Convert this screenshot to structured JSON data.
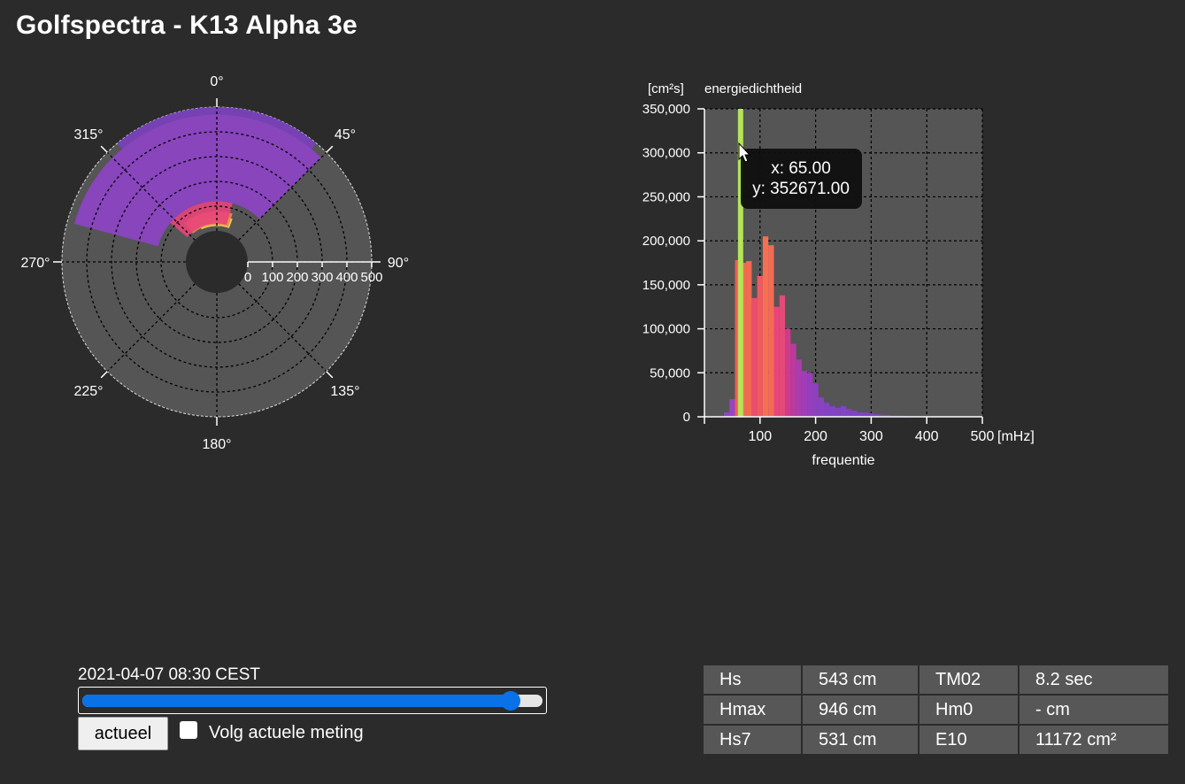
{
  "title": "Golfspectra - K13 Alpha 3e",
  "polar": {
    "direction_labels": [
      "0°",
      "45°",
      "90°",
      "135°",
      "180°",
      "225°",
      "270°",
      "315°"
    ],
    "radial_ticks": [
      "0",
      "100",
      "200",
      "300",
      "400",
      "500"
    ],
    "energy_bands": [
      {
        "r_min": 20,
        "r_max": 60,
        "dir_from": -25,
        "dir_to": 20,
        "color": "#f4e04d"
      },
      {
        "r_min": 25,
        "r_max": 80,
        "dir_from": -40,
        "dir_to": 18,
        "color": "#f2894f"
      },
      {
        "r_min": 30,
        "r_max": 120,
        "dir_from": -50,
        "dir_to": 15,
        "color": "#e8457a"
      },
      {
        "r_min": 120,
        "r_max": 470,
        "dir_from": -75,
        "dir_to": 45,
        "color": "#8e44c8"
      },
      {
        "r_min": 470,
        "r_max": 500,
        "dir_from": -40,
        "dir_to": 40,
        "color": "#7a3fbf"
      }
    ]
  },
  "chart_data": {
    "type": "bar",
    "title": "energiedichtheid",
    "ylabel": "[cm²s]",
    "xlabel": "frequentie",
    "xunit": "[mHz]",
    "xlim": [
      0,
      500
    ],
    "ylim": [
      0,
      350000
    ],
    "xticks": [
      "100",
      "200",
      "300",
      "400",
      "500"
    ],
    "yticks": [
      "0",
      "50,000",
      "100,000",
      "150,000",
      "200,000",
      "250,000",
      "300,000",
      "350,000"
    ],
    "grid": true,
    "bin_width": 10,
    "bins": [
      {
        "x": 40,
        "y": 5000,
        "color": "#8e44c8"
      },
      {
        "x": 50,
        "y": 20000,
        "color": "#9b44c0"
      },
      {
        "x": 60,
        "y": 178000,
        "color": "#ef5e57"
      },
      {
        "x": 70,
        "y": 175000,
        "color": "#f36c4f"
      },
      {
        "x": 80,
        "y": 177000,
        "color": "#f26a50"
      },
      {
        "x": 90,
        "y": 135000,
        "color": "#ec4d6c"
      },
      {
        "x": 100,
        "y": 160000,
        "color": "#ef5a60"
      },
      {
        "x": 110,
        "y": 205000,
        "color": "#f47052"
      },
      {
        "x": 120,
        "y": 195000,
        "color": "#f36b54"
      },
      {
        "x": 130,
        "y": 125000,
        "color": "#e8457a"
      },
      {
        "x": 140,
        "y": 138000,
        "color": "#e34a78"
      },
      {
        "x": 150,
        "y": 100000,
        "color": "#d03a8c"
      },
      {
        "x": 160,
        "y": 83000,
        "color": "#bb3aa0"
      },
      {
        "x": 170,
        "y": 65000,
        "color": "#ab3cb0"
      },
      {
        "x": 180,
        "y": 52000,
        "color": "#a03db8"
      },
      {
        "x": 190,
        "y": 50000,
        "color": "#973ebc"
      },
      {
        "x": 200,
        "y": 38000,
        "color": "#8e40c0"
      },
      {
        "x": 210,
        "y": 22000,
        "color": "#8a42c2"
      },
      {
        "x": 220,
        "y": 16000,
        "color": "#8642c4"
      },
      {
        "x": 230,
        "y": 12000,
        "color": "#8443c4"
      },
      {
        "x": 240,
        "y": 10000,
        "color": "#8243c5"
      },
      {
        "x": 250,
        "y": 12000,
        "color": "#8243c5"
      },
      {
        "x": 260,
        "y": 9000,
        "color": "#8143c5"
      },
      {
        "x": 270,
        "y": 7000,
        "color": "#8043c6"
      },
      {
        "x": 280,
        "y": 5000,
        "color": "#8043c6"
      },
      {
        "x": 290,
        "y": 5000,
        "color": "#7f43c6"
      },
      {
        "x": 300,
        "y": 4000,
        "color": "#7f43c6"
      },
      {
        "x": 310,
        "y": 3000,
        "color": "#7e43c6"
      },
      {
        "x": 320,
        "y": 2500,
        "color": "#7e43c6"
      },
      {
        "x": 330,
        "y": 2000,
        "color": "#7e43c6"
      },
      {
        "x": 340,
        "y": 1500,
        "color": "#7e43c6"
      },
      {
        "x": 350,
        "y": 1200,
        "color": "#7e43c6"
      },
      {
        "x": 360,
        "y": 1000,
        "color": "#7e43c6"
      }
    ],
    "highlight": {
      "x": 65,
      "y": 352671,
      "color": "#b5e35a"
    },
    "tooltip": {
      "x_text": "x: 65.00",
      "y_text": "y: 352671.00"
    }
  },
  "timestamp": "2021-04-07 08:30 CEST",
  "slider": {
    "fraction": 0.93
  },
  "actueel_button": "actueel",
  "follow_label": "Volg actuele meting",
  "stats": [
    [
      "Hs",
      "543 cm",
      "TM02",
      "8.2 sec"
    ],
    [
      "Hmax",
      "946 cm",
      "Hm0",
      "- cm"
    ],
    [
      "Hs7",
      "531 cm",
      "E10",
      "11172 cm²"
    ]
  ]
}
